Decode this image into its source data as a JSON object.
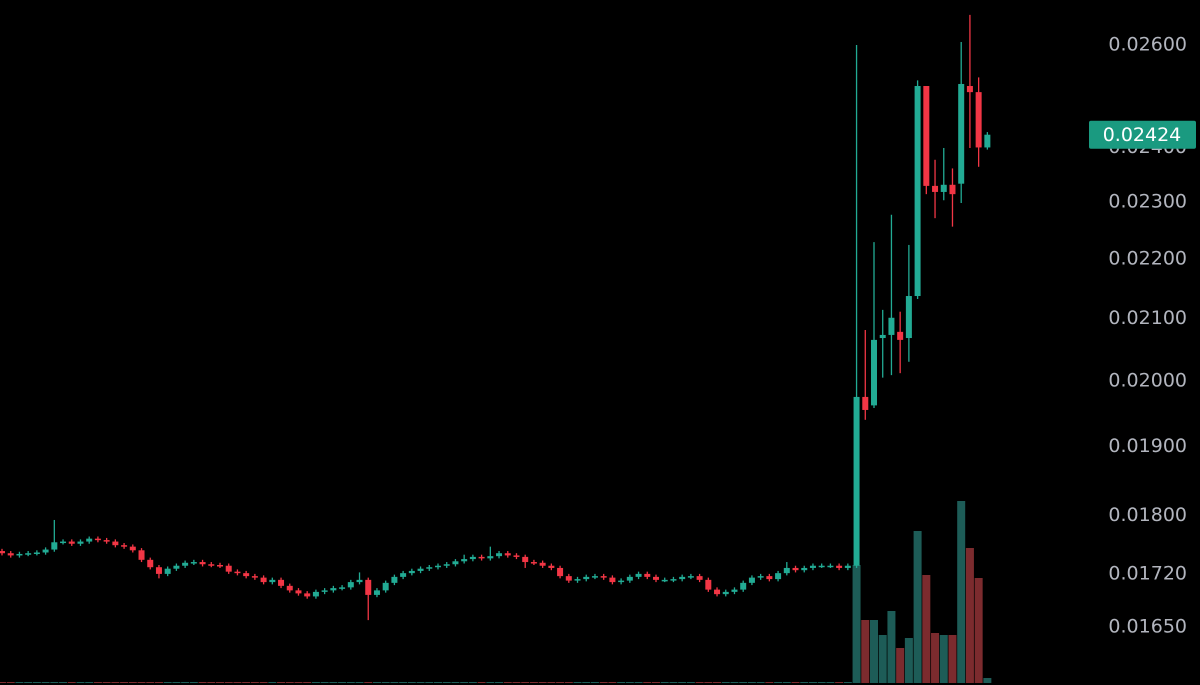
{
  "chart_data": {
    "type": "candlestick",
    "log": true,
    "ylim": [
      0.01577,
      0.02693
    ],
    "yticks": [
      {
        "value": 0.026,
        "label": "0.02600"
      },
      {
        "value": 0.024,
        "label": "0.02400"
      },
      {
        "value": 0.023,
        "label": "0.02300"
      },
      {
        "value": 0.022,
        "label": "0.02200"
      },
      {
        "value": 0.021,
        "label": "0.02100"
      },
      {
        "value": 0.02,
        "label": "0.02000"
      },
      {
        "value": 0.019,
        "label": "0.01900"
      },
      {
        "value": 0.018,
        "label": "0.01800"
      },
      {
        "value": 0.0172,
        "label": "0.01720"
      },
      {
        "value": 0.0165,
        "label": "0.01650"
      }
    ],
    "up_color": "#22ab94",
    "down_color": "#f23645",
    "up_volume_color": "#1d5c57",
    "down_volume_color": "#7c2b2e",
    "price_tag_color": "#1a9a80",
    "ohlc": [
      [
        0.01751,
        0.01754,
        0.01745,
        0.01748
      ],
      [
        0.01748,
        0.01751,
        0.01742,
        0.01745
      ],
      [
        0.01745,
        0.0175,
        0.01742,
        0.01747
      ],
      [
        0.01747,
        0.01751,
        0.01744,
        0.01748
      ],
      [
        0.01748,
        0.01752,
        0.01745,
        0.01749
      ],
      [
        0.01749,
        0.01756,
        0.01746,
        0.01753
      ],
      [
        0.01753,
        0.01794,
        0.0175,
        0.01763
      ],
      [
        0.01763,
        0.01767,
        0.0176,
        0.01764
      ],
      [
        0.01764,
        0.01767,
        0.01758,
        0.01761
      ],
      [
        0.01761,
        0.01767,
        0.01758,
        0.01764
      ],
      [
        0.01764,
        0.01771,
        0.01761,
        0.01768
      ],
      [
        0.01768,
        0.01771,
        0.01763,
        0.01766
      ],
      [
        0.01766,
        0.01769,
        0.01761,
        0.01764
      ],
      [
        0.01764,
        0.01767,
        0.01756,
        0.01759
      ],
      [
        0.01759,
        0.01762,
        0.01754,
        0.01757
      ],
      [
        0.01757,
        0.0176,
        0.01749,
        0.01752
      ],
      [
        0.01752,
        0.01755,
        0.01736,
        0.01739
      ],
      [
        0.01739,
        0.01742,
        0.01726,
        0.01729
      ],
      [
        0.01729,
        0.01732,
        0.01714,
        0.0172
      ],
      [
        0.0172,
        0.0173,
        0.01717,
        0.01727
      ],
      [
        0.01727,
        0.01734,
        0.01724,
        0.01731
      ],
      [
        0.01731,
        0.01738,
        0.01728,
        0.01735
      ],
      [
        0.01735,
        0.01739,
        0.01732,
        0.01736
      ],
      [
        0.01736,
        0.01739,
        0.0173,
        0.01733
      ],
      [
        0.01733,
        0.01736,
        0.01729,
        0.01732
      ],
      [
        0.01732,
        0.01735,
        0.01728,
        0.01731
      ],
      [
        0.01731,
        0.01734,
        0.0172,
        0.01723
      ],
      [
        0.01723,
        0.01726,
        0.01718,
        0.01721
      ],
      [
        0.01721,
        0.01724,
        0.01714,
        0.01717
      ],
      [
        0.01717,
        0.0172,
        0.01712,
        0.01715
      ],
      [
        0.01715,
        0.01718,
        0.01706,
        0.01709
      ],
      [
        0.01709,
        0.01715,
        0.01706,
        0.01712
      ],
      [
        0.01712,
        0.01715,
        0.01701,
        0.01704
      ],
      [
        0.01704,
        0.01707,
        0.01695,
        0.01698
      ],
      [
        0.01698,
        0.01701,
        0.01691,
        0.01694
      ],
      [
        0.01694,
        0.01697,
        0.01687,
        0.0169
      ],
      [
        0.0169,
        0.01699,
        0.01687,
        0.01696
      ],
      [
        0.01696,
        0.01701,
        0.01693,
        0.01698
      ],
      [
        0.01698,
        0.01704,
        0.01695,
        0.01701
      ],
      [
        0.01701,
        0.01705,
        0.01698,
        0.01702
      ],
      [
        0.01702,
        0.01712,
        0.01699,
        0.01709
      ],
      [
        0.01709,
        0.01722,
        0.01706,
        0.01712
      ],
      [
        0.01712,
        0.01715,
        0.01659,
        0.01692
      ],
      [
        0.01692,
        0.01701,
        0.01689,
        0.01698
      ],
      [
        0.01698,
        0.01711,
        0.01695,
        0.01708
      ],
      [
        0.01708,
        0.01719,
        0.01705,
        0.01716
      ],
      [
        0.01716,
        0.01724,
        0.01713,
        0.01721
      ],
      [
        0.01721,
        0.01727,
        0.01718,
        0.01724
      ],
      [
        0.01724,
        0.0173,
        0.01721,
        0.01727
      ],
      [
        0.01727,
        0.01732,
        0.01724,
        0.01729
      ],
      [
        0.01729,
        0.01734,
        0.01726,
        0.01731
      ],
      [
        0.01731,
        0.01736,
        0.01728,
        0.01733
      ],
      [
        0.01733,
        0.0174,
        0.0173,
        0.01737
      ],
      [
        0.01737,
        0.01746,
        0.01734,
        0.0174
      ],
      [
        0.0174,
        0.01746,
        0.01737,
        0.01743
      ],
      [
        0.01743,
        0.01746,
        0.01738,
        0.01741
      ],
      [
        0.01741,
        0.01757,
        0.01738,
        0.01744
      ],
      [
        0.01744,
        0.01751,
        0.01741,
        0.01748
      ],
      [
        0.01748,
        0.01751,
        0.01742,
        0.01745
      ],
      [
        0.01745,
        0.01748,
        0.0174,
        0.01743
      ],
      [
        0.01743,
        0.01746,
        0.01728,
        0.01736
      ],
      [
        0.01736,
        0.01739,
        0.01732,
        0.01735
      ],
      [
        0.01735,
        0.01738,
        0.01728,
        0.01731
      ],
      [
        0.01731,
        0.01734,
        0.01725,
        0.01728
      ],
      [
        0.01728,
        0.01731,
        0.01714,
        0.01717
      ],
      [
        0.01717,
        0.0172,
        0.01708,
        0.01711
      ],
      [
        0.01711,
        0.01716,
        0.01708,
        0.01713
      ],
      [
        0.01713,
        0.01719,
        0.0171,
        0.01716
      ],
      [
        0.01716,
        0.0172,
        0.01713,
        0.01717
      ],
      [
        0.01717,
        0.0172,
        0.01712,
        0.01715
      ],
      [
        0.01715,
        0.01718,
        0.01706,
        0.01709
      ],
      [
        0.01709,
        0.01714,
        0.01706,
        0.01711
      ],
      [
        0.01711,
        0.01719,
        0.01708,
        0.01716
      ],
      [
        0.01716,
        0.01723,
        0.01713,
        0.0172
      ],
      [
        0.0172,
        0.01723,
        0.01713,
        0.01716
      ],
      [
        0.01716,
        0.01719,
        0.01709,
        0.01712
      ],
      [
        0.01712,
        0.01715,
        0.01709,
        0.01712
      ],
      [
        0.01712,
        0.01716,
        0.01709,
        0.01713
      ],
      [
        0.01713,
        0.01719,
        0.0171,
        0.01716
      ],
      [
        0.01716,
        0.0172,
        0.01713,
        0.01717
      ],
      [
        0.01717,
        0.0172,
        0.01709,
        0.01712
      ],
      [
        0.01712,
        0.01715,
        0.01696,
        0.01699
      ],
      [
        0.01699,
        0.01702,
        0.0169,
        0.01693
      ],
      [
        0.01693,
        0.01699,
        0.0169,
        0.01696
      ],
      [
        0.01696,
        0.01702,
        0.01693,
        0.01699
      ],
      [
        0.01699,
        0.01711,
        0.01696,
        0.01708
      ],
      [
        0.01708,
        0.01718,
        0.01705,
        0.01715
      ],
      [
        0.01715,
        0.0172,
        0.01712,
        0.01717
      ],
      [
        0.01717,
        0.0172,
        0.0171,
        0.01713
      ],
      [
        0.01713,
        0.01724,
        0.0171,
        0.01721
      ],
      [
        0.01721,
        0.01736,
        0.01718,
        0.01728
      ],
      [
        0.01728,
        0.01731,
        0.01722,
        0.01725
      ],
      [
        0.01725,
        0.01731,
        0.01722,
        0.01728
      ],
      [
        0.01728,
        0.01734,
        0.01725,
        0.01731
      ],
      [
        0.01731,
        0.01734,
        0.01728,
        0.01731
      ],
      [
        0.01731,
        0.01734,
        0.01728,
        0.01731
      ],
      [
        0.01731,
        0.01734,
        0.01725,
        0.01728
      ],
      [
        0.01728,
        0.01734,
        0.01725,
        0.01731
      ],
      [
        0.01731,
        0.026,
        0.01728,
        0.01975
      ],
      [
        0.01975,
        0.02081,
        0.0194,
        0.01955
      ],
      [
        0.01962,
        0.02229,
        0.01958,
        0.02065
      ],
      [
        0.02068,
        0.02114,
        0.02005,
        0.02073
      ],
      [
        0.02073,
        0.02277,
        0.02009,
        0.02101
      ],
      [
        0.02078,
        0.02111,
        0.02012,
        0.02065
      ],
      [
        0.02068,
        0.02224,
        0.0203,
        0.02137
      ],
      [
        0.02137,
        0.02529,
        0.02132,
        0.02518
      ],
      [
        0.02518,
        0.02518,
        0.02314,
        0.02329
      ],
      [
        0.02329,
        0.02377,
        0.02271,
        0.02318
      ],
      [
        0.02318,
        0.02399,
        0.02303,
        0.02331
      ],
      [
        0.02331,
        0.02361,
        0.02256,
        0.02314
      ],
      [
        0.02333,
        0.02606,
        0.02298,
        0.02522
      ],
      [
        0.02518,
        0.02662,
        0.02399,
        0.02506
      ],
      [
        0.02506,
        0.02535,
        0.02364,
        0.024
      ],
      [
        0.024,
        0.02429,
        0.02396,
        0.02424
      ]
    ],
    "volume": [
      1,
      1,
      1,
      1,
      1,
      1,
      1,
      1,
      1,
      1,
      1,
      1,
      1,
      1,
      1,
      1,
      1,
      1,
      1,
      1,
      1,
      1,
      1,
      1,
      1,
      1,
      1,
      1,
      1,
      1,
      1,
      1,
      1,
      1,
      1,
      1,
      1,
      1,
      1,
      1,
      1,
      1,
      1,
      1,
      1,
      1,
      1,
      1,
      1,
      1,
      1,
      1,
      1,
      1,
      1,
      1,
      1,
      1,
      1,
      1,
      1,
      1,
      1,
      1,
      1,
      1,
      1,
      1,
      1,
      1,
      1,
      1,
      1,
      1,
      1,
      1,
      1,
      1,
      1,
      1,
      1,
      1,
      1,
      1,
      1,
      1,
      1,
      1,
      1,
      1,
      1,
      1,
      1,
      1,
      1,
      1,
      1,
      1,
      118,
      63,
      63,
      48,
      72,
      35,
      45,
      152,
      108,
      50,
      48,
      48,
      182,
      135,
      105,
      5
    ]
  }
}
